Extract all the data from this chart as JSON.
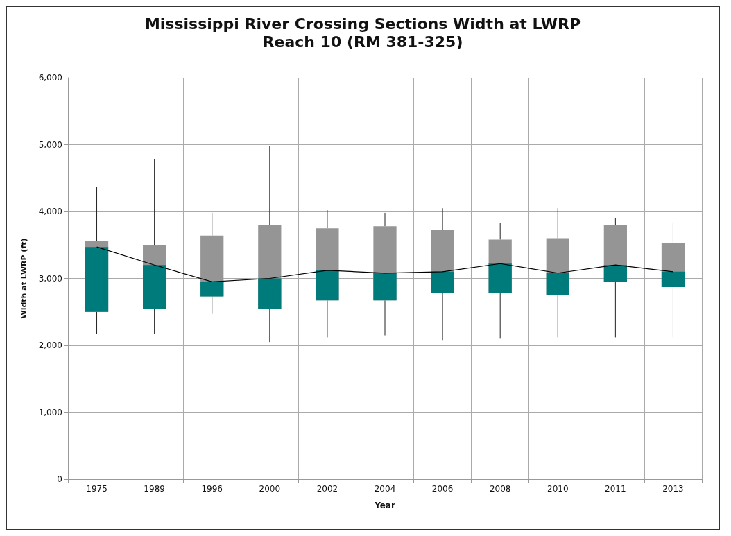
{
  "chart_data": {
    "type": "box",
    "title": "Mississippi River Crossing Sections Width at LWRP",
    "subtitle": "Reach 10 (RM 381-325)",
    "xlabel": "Year",
    "ylabel": "Width at LWRP (ft)",
    "categories": [
      "1975",
      "1989",
      "1996",
      "2000",
      "2002",
      "2004",
      "2006",
      "2008",
      "2010",
      "2011",
      "2013"
    ],
    "ylim": [
      0,
      6000
    ],
    "yticks": [
      {
        "value": 0,
        "label": "0"
      },
      {
        "value": 1000,
        "label": "1,000"
      },
      {
        "value": 2000,
        "label": "2,000"
      },
      {
        "value": 3000,
        "label": "3,000"
      },
      {
        "value": 4000,
        "label": "4,000"
      },
      {
        "value": 5000,
        "label": "5,000"
      },
      {
        "value": 6000,
        "label": "6,000"
      }
    ],
    "grid": true,
    "legend": false,
    "series": [
      {
        "color": "#959595",
        "boxes": [
          {
            "low": 2170,
            "q1": 2500,
            "median": 3470,
            "q3": 3560,
            "high": 4370
          },
          {
            "low": 2170,
            "q1": 2550,
            "median": 3200,
            "q3": 3500,
            "high": 4780
          },
          {
            "low": 2470,
            "q1": 2730,
            "median": 2950,
            "q3": 3640,
            "high": 3980
          },
          {
            "low": 2050,
            "q1": 2550,
            "median": 3000,
            "q3": 3800,
            "high": 4980
          },
          {
            "low": 2120,
            "q1": 2670,
            "median": 3120,
            "q3": 3750,
            "high": 4020
          },
          {
            "low": 2150,
            "q1": 2670,
            "median": 3080,
            "q3": 3780,
            "high": 3980
          },
          {
            "low": 2070,
            "q1": 2780,
            "median": 3100,
            "q3": 3730,
            "high": 4050
          },
          {
            "low": 2100,
            "q1": 2780,
            "median": 3220,
            "q3": 3580,
            "high": 3830
          },
          {
            "low": 2120,
            "q1": 2750,
            "median": 3080,
            "q3": 3600,
            "high": 4050
          },
          {
            "low": 2120,
            "q1": 2950,
            "median": 3200,
            "q3": 3800,
            "high": 3900
          },
          {
            "low": 2120,
            "q1": 2870,
            "median": 3100,
            "q3": 3530,
            "high": 3830
          }
        ]
      },
      {
        "type": "bar",
        "color": "#007b7b",
        "base": [
          2500,
          2550,
          2730,
          2550,
          2670,
          2670,
          2780,
          2780,
          2750,
          2950,
          2870
        ],
        "values": [
          970,
          650,
          220,
          450,
          450,
          410,
          320,
          440,
          330,
          250,
          230
        ]
      },
      {
        "type": "line",
        "color": "#000000",
        "marker": "none",
        "line_style": "solid",
        "values": [
          3470,
          3200,
          2950,
          3000,
          3120,
          3080,
          3100,
          3220,
          3080,
          3200,
          3100
        ]
      }
    ]
  }
}
